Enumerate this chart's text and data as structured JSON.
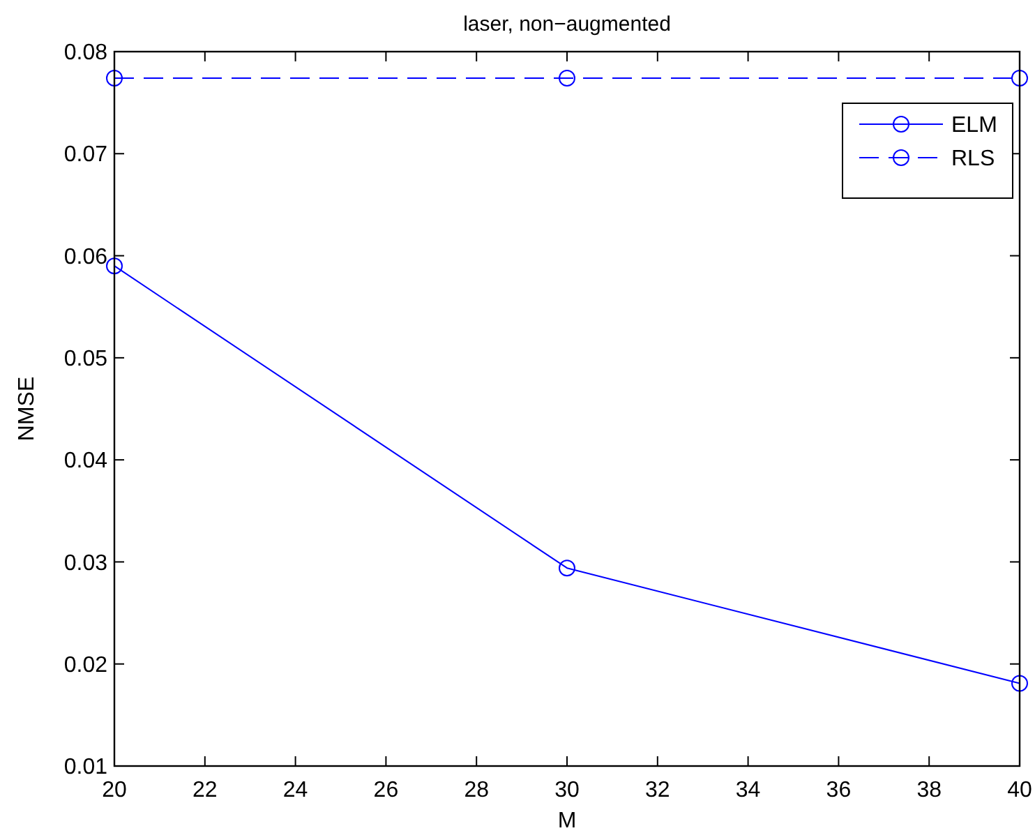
{
  "chart_data": {
    "type": "line",
    "title": "laser, non−augmented",
    "xlabel": "M",
    "ylabel": "NMSE",
    "x": [
      20,
      30,
      40
    ],
    "series": [
      {
        "name": "ELM",
        "color": "#0000ff",
        "values": [
          0.059,
          0.0294,
          0.0181
        ],
        "line_style": "solid"
      },
      {
        "name": "RLS",
        "color": "#0000ff",
        "values": [
          0.0774,
          0.0774,
          0.0774
        ],
        "line_style": "dashed"
      }
    ],
    "xlim": [
      20,
      40
    ],
    "xticks": [
      20,
      22,
      24,
      26,
      28,
      30,
      32,
      34,
      36,
      38,
      40
    ],
    "ylim": [
      0.01,
      0.08
    ],
    "yticks": [
      {
        "value": 0.01,
        "label": "0.01"
      },
      {
        "value": 0.02,
        "label": "0.02"
      },
      {
        "value": 0.03,
        "label": "0.03"
      },
      {
        "value": 0.04,
        "label": "0.04"
      },
      {
        "value": 0.05,
        "label": "0.05"
      },
      {
        "value": 0.06,
        "label": "0.06"
      },
      {
        "value": 0.07,
        "label": "0.07"
      },
      {
        "value": 0.08,
        "label": "0.08"
      }
    ],
    "marker": "circle",
    "legend": "top right",
    "grid": false
  }
}
